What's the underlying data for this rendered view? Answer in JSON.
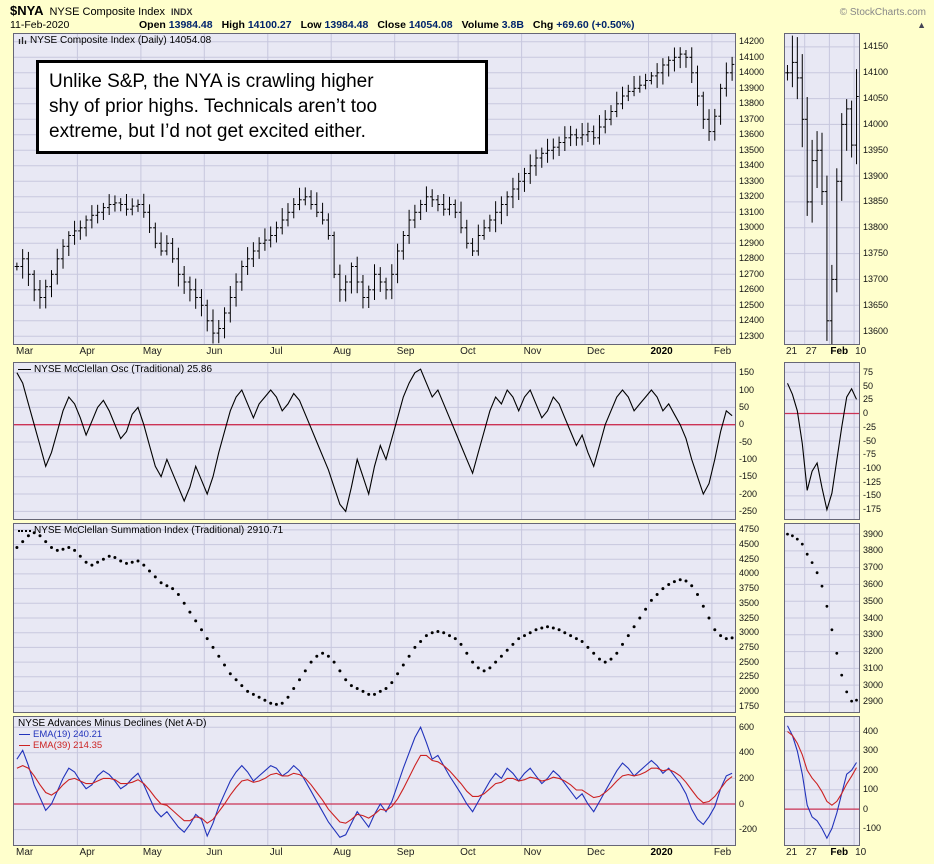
{
  "header": {
    "symbol": "$NYA",
    "name": "NYSE Composite Index",
    "type": "INDX",
    "source": "© StockCharts.com",
    "date": "11-Feb-2020",
    "quote": [
      {
        "label": "Open",
        "value": "13984.48"
      },
      {
        "label": "High",
        "value": "14100.27"
      },
      {
        "label": "Low",
        "value": "13984.48"
      },
      {
        "label": "Close",
        "value": "14054.08"
      },
      {
        "label": "Volume",
        "value": "3.8B"
      },
      {
        "label": "Chg",
        "value": "+69.60 (+0.50%)"
      }
    ],
    "arrow": "▲"
  },
  "annotation": {
    "line1": "Unlike S&P, the NYA is crawling higher",
    "line2": "shy of prior highs. Technicals aren’t too",
    "line3": "extreme, but I’d not get excited either."
  },
  "colors": {
    "background": "#FFFFCC",
    "panel_bg": "#E8E8F4",
    "grid": "#C7C7DE",
    "border": "#666677",
    "bar": "#000000",
    "line": "#000000",
    "zero_line": "#CC3355",
    "ema19": "#2233BB",
    "ema39": "#CC2222"
  },
  "xaxis": {
    "months": [
      {
        "label": "Mar",
        "idx": 0,
        "bold": false
      },
      {
        "label": "Apr",
        "idx": 11,
        "bold": false
      },
      {
        "label": "May",
        "idx": 22,
        "bold": false
      },
      {
        "label": "Jun",
        "idx": 33,
        "bold": false
      },
      {
        "label": "Jul",
        "idx": 44,
        "bold": false
      },
      {
        "label": "Aug",
        "idx": 55,
        "bold": false
      },
      {
        "label": "Sep",
        "idx": 66,
        "bold": false
      },
      {
        "label": "Oct",
        "idx": 77,
        "bold": false
      },
      {
        "label": "Nov",
        "idx": 88,
        "bold": false
      },
      {
        "label": "Dec",
        "idx": 99,
        "bold": false
      },
      {
        "label": "2020",
        "idx": 110,
        "bold": true
      },
      {
        "label": "Feb",
        "idx": 121,
        "bold": false
      }
    ],
    "inset_labels": [
      {
        "label": "21",
        "idx": 0,
        "bold": false
      },
      {
        "label": "27",
        "idx": 4,
        "bold": false
      },
      {
        "label": "Feb",
        "idx": 9,
        "bold": true
      },
      {
        "label": "10",
        "idx": 14,
        "bold": false
      }
    ]
  },
  "chart_data": [
    {
      "type": "bar",
      "name": "price",
      "title": "NYSE Composite Index (Daily) 14054.08",
      "ylim": [
        12250,
        14250
      ],
      "yticks": [
        14200,
        14100,
        14000,
        13900,
        13800,
        13700,
        13600,
        13500,
        13400,
        13300,
        13200,
        13100,
        13000,
        12900,
        12800,
        12700,
        12600,
        12500,
        12400,
        12300
      ],
      "closes": [
        12750,
        12800,
        12700,
        12600,
        12550,
        12620,
        12700,
        12800,
        12880,
        12950,
        12980,
        13000,
        13050,
        13080,
        13100,
        13130,
        13150,
        13160,
        13150,
        13120,
        13140,
        13150,
        13100,
        13000,
        12900,
        12850,
        12900,
        12800,
        12700,
        12650,
        12600,
        12550,
        12500,
        12400,
        12320,
        12350,
        12450,
        12550,
        12650,
        12750,
        12800,
        12850,
        12900,
        12920,
        12950,
        13000,
        13050,
        13100,
        13150,
        13180,
        13200,
        13150,
        13100,
        13050,
        12950,
        12700,
        12600,
        12650,
        12750,
        12650,
        12550,
        12600,
        12700,
        12650,
        12600,
        12700,
        12850,
        12950,
        13050,
        13100,
        13150,
        13200,
        13180,
        13150,
        13120,
        13150,
        13100,
        13000,
        12900,
        12850,
        12950,
        13000,
        13050,
        13100,
        13150,
        13200,
        13250,
        13300,
        13350,
        13400,
        13450,
        13480,
        13500,
        13520,
        13550,
        13580,
        13600,
        13580,
        13600,
        13620,
        13580,
        13650,
        13700,
        13750,
        13800,
        13850,
        13880,
        13900,
        13920,
        13950,
        13980,
        14000,
        14050,
        14080,
        14100,
        14120,
        14100,
        14000,
        13850,
        13700,
        13620,
        13720,
        13900,
        14000,
        14054
      ],
      "inset": {
        "ylim": [
          13575,
          14175
        ],
        "yticks": [
          14150,
          14100,
          14050,
          14000,
          13950,
          13900,
          13850,
          13800,
          13750,
          13700,
          13650,
          13600
        ],
        "closes": [
          14100,
          14120,
          14090,
          14010,
          13850,
          13930,
          13950,
          13870,
          13620,
          13700,
          13890,
          14000,
          14030,
          13960,
          14054
        ]
      }
    },
    {
      "type": "line",
      "name": "mcclellan_oscillator",
      "title": "NYSE McClellan Osc (Traditional) 25.86",
      "zero_at": 0,
      "ylim": [
        -272,
        178
      ],
      "yticks": [
        150,
        100,
        50,
        0,
        -50,
        -100,
        -150,
        -200,
        -250
      ],
      "values": [
        150,
        120,
        60,
        0,
        -60,
        -120,
        -80,
        -20,
        40,
        80,
        60,
        20,
        -30,
        10,
        50,
        70,
        40,
        0,
        -40,
        -20,
        30,
        50,
        0,
        -60,
        -120,
        -150,
        -100,
        -140,
        -180,
        -220,
        -180,
        -120,
        -160,
        -200,
        -150,
        -80,
        -20,
        40,
        80,
        100,
        60,
        20,
        60,
        80,
        100,
        80,
        40,
        60,
        90,
        70,
        30,
        -10,
        -50,
        -90,
        -130,
        -180,
        -230,
        -250,
        -180,
        -100,
        -150,
        -200,
        -120,
        -60,
        -100,
        -40,
        20,
        80,
        120,
        150,
        160,
        120,
        80,
        100,
        60,
        20,
        -20,
        -60,
        -100,
        -140,
        -80,
        -20,
        40,
        80,
        60,
        100,
        80,
        40,
        80,
        100,
        60,
        20,
        40,
        80,
        60,
        20,
        -20,
        -60,
        -30,
        -80,
        -120,
        -60,
        0,
        40,
        80,
        100,
        80,
        40,
        60,
        80,
        100,
        80,
        40,
        60,
        30,
        0,
        -40,
        -100,
        -150,
        -200,
        -170,
        -100,
        -20,
        40,
        25.86
      ],
      "inset": {
        "ylim": [
          -192,
          92
        ],
        "yticks": [
          75,
          50,
          25,
          0,
          -25,
          -50,
          -75,
          -100,
          -125,
          -150,
          -175
        ],
        "values": [
          55,
          35,
          5,
          -55,
          -140,
          -105,
          -90,
          -135,
          -175,
          -145,
          -85,
          -25,
          30,
          45,
          25.86
        ]
      }
    },
    {
      "type": "dots",
      "name": "mcclellan_summation",
      "title": "NYSE McClellan Summation Index (Traditional) 2910.71",
      "ylim": [
        1650,
        4850
      ],
      "yticks": [
        4750,
        4500,
        4250,
        4000,
        3750,
        3500,
        3250,
        3000,
        2750,
        2500,
        2250,
        2000,
        1750
      ],
      "values": [
        4450,
        4550,
        4650,
        4700,
        4650,
        4550,
        4450,
        4400,
        4420,
        4450,
        4400,
        4300,
        4200,
        4150,
        4200,
        4250,
        4300,
        4280,
        4220,
        4180,
        4200,
        4220,
        4150,
        4050,
        3950,
        3850,
        3800,
        3750,
        3650,
        3500,
        3350,
        3200,
        3050,
        2900,
        2750,
        2600,
        2450,
        2300,
        2200,
        2100,
        2000,
        1950,
        1900,
        1850,
        1800,
        1780,
        1800,
        1900,
        2050,
        2200,
        2350,
        2500,
        2600,
        2650,
        2600,
        2500,
        2350,
        2200,
        2100,
        2050,
        2000,
        1950,
        1950,
        2000,
        2050,
        2150,
        2300,
        2450,
        2600,
        2750,
        2850,
        2950,
        3000,
        3020,
        3000,
        2950,
        2900,
        2800,
        2650,
        2500,
        2400,
        2350,
        2400,
        2500,
        2600,
        2700,
        2800,
        2900,
        2950,
        3000,
        3050,
        3080,
        3100,
        3080,
        3050,
        3000,
        2950,
        2900,
        2850,
        2750,
        2650,
        2550,
        2500,
        2550,
        2650,
        2800,
        2950,
        3100,
        3250,
        3400,
        3550,
        3650,
        3750,
        3820,
        3870,
        3900,
        3880,
        3800,
        3650,
        3450,
        3250,
        3050,
        2950,
        2900,
        2910.71
      ],
      "inset": {
        "ylim": [
          2840,
          3960
        ],
        "yticks": [
          3900,
          3800,
          3700,
          3600,
          3500,
          3400,
          3300,
          3200,
          3100,
          3000,
          2900
        ],
        "values": [
          3900,
          3890,
          3870,
          3840,
          3780,
          3730,
          3670,
          3590,
          3470,
          3330,
          3190,
          3060,
          2960,
          2905,
          2910.71
        ]
      }
    },
    {
      "type": "multi_line",
      "name": "net_advance_decline",
      "title": "NYSE Advances Minus Declines (Net A-D)",
      "zero_at": 0,
      "ylim": [
        -320,
        680
      ],
      "yticks": [
        600,
        400,
        200,
        0,
        -200
      ],
      "series": [
        {
          "name": "EMA(19)",
          "legend": "EMA(19) 240.21",
          "color_key": "ema19",
          "values": [
            350,
            420,
            300,
            150,
            50,
            -50,
            0,
            100,
            200,
            280,
            250,
            180,
            120,
            150,
            220,
            260,
            230,
            180,
            120,
            150,
            200,
            240,
            150,
            50,
            -50,
            -100,
            -60,
            -120,
            -180,
            -220,
            -160,
            -80,
            -120,
            -250,
            -150,
            -20,
            80,
            180,
            250,
            300,
            250,
            180,
            220,
            260,
            300,
            280,
            220,
            250,
            300,
            260,
            180,
            100,
            20,
            -60,
            -140,
            -200,
            -260,
            -240,
            -150,
            -60,
            -120,
            -180,
            -80,
            0,
            -60,
            20,
            150,
            280,
            400,
            520,
            600,
            480,
            350,
            380,
            300,
            220,
            150,
            80,
            0,
            -60,
            20,
            100,
            180,
            240,
            200,
            280,
            240,
            180,
            240,
            280,
            220,
            160,
            200,
            260,
            220,
            160,
            100,
            40,
            80,
            0,
            -60,
            20,
            100,
            180,
            260,
            320,
            280,
            220,
            260,
            300,
            340,
            300,
            240,
            280,
            220,
            160,
            80,
            -40,
            -120,
            -160,
            -100,
            -20,
            120,
            220,
            240.21
          ]
        },
        {
          "name": "EMA(39)",
          "legend": "EMA(39) 214.35",
          "color_key": "ema39",
          "values": [
            280,
            300,
            280,
            220,
            150,
            90,
            70,
            100,
            150,
            190,
            200,
            180,
            160,
            160,
            180,
            200,
            200,
            190,
            160,
            160,
            170,
            190,
            160,
            110,
            50,
            0,
            -10,
            -50,
            -90,
            -130,
            -130,
            -100,
            -110,
            -150,
            -120,
            -60,
            0,
            70,
            130,
            180,
            190,
            170,
            180,
            200,
            230,
            240,
            220,
            220,
            240,
            230,
            200,
            150,
            90,
            30,
            -40,
            -90,
            -140,
            -150,
            -120,
            -80,
            -90,
            -110,
            -80,
            -40,
            -50,
            -20,
            40,
            120,
            210,
            300,
            380,
            380,
            340,
            330,
            300,
            260,
            210,
            160,
            100,
            60,
            60,
            80,
            120,
            160,
            170,
            200,
            200,
            180,
            190,
            210,
            200,
            180,
            190,
            210,
            200,
            180,
            150,
            110,
            110,
            80,
            50,
            60,
            90,
            130,
            180,
            220,
            230,
            220,
            230,
            250,
            280,
            280,
            260,
            270,
            250,
            220,
            170,
            110,
            50,
            10,
            20,
            60,
            120,
            180,
            214.35
          ]
        }
      ],
      "inset": {
        "ylim": [
          -185,
          475
        ],
        "yticks": [
          400,
          300,
          200,
          100,
          0,
          -100
        ],
        "series": [
          {
            "color_key": "ema19",
            "values": [
              430,
              380,
              300,
              180,
              20,
              -40,
              -60,
              -100,
              -150,
              -100,
              -20,
              80,
              180,
              200,
              240.21
            ]
          },
          {
            "color_key": "ema39",
            "values": [
              400,
              380,
              340,
              280,
              200,
              160,
              130,
              90,
              40,
              20,
              40,
              80,
              130,
              170,
              214.35
            ]
          }
        ]
      }
    }
  ]
}
